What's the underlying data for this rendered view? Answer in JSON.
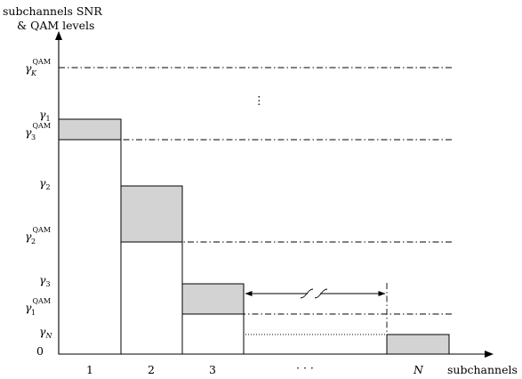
{
  "axes": {
    "y_label_line1": "subchannels SNR",
    "y_label_line2": "& QAM levels",
    "x_label": "subchannels",
    "origin_label": "0"
  },
  "y_levels": {
    "gamma_1": {
      "sym": "γ",
      "sub": "1"
    },
    "gamma_2": {
      "sym": "γ",
      "sub": "2"
    },
    "gamma_3": {
      "sym": "γ",
      "sub": "3"
    },
    "gamma_N": {
      "sym": "γ",
      "sub": "N"
    },
    "qam_K": {
      "sym": "γ",
      "sup": "QAM",
      "sub": "K"
    },
    "qam_3": {
      "sym": "γ",
      "sup": "QAM",
      "sub": "3"
    },
    "qam_2": {
      "sym": "γ",
      "sup": "QAM",
      "sub": "2"
    },
    "qam_1": {
      "sym": "γ",
      "sup": "QAM",
      "sub": "1"
    }
  },
  "x_ticks": [
    "1",
    "2",
    "3",
    "· · ·",
    "N"
  ],
  "vertical_ellipsis": "⋮"
}
